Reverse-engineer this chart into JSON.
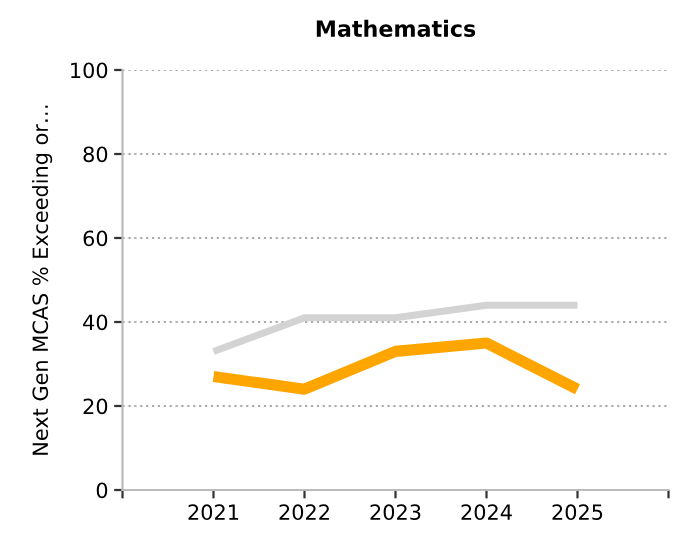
{
  "chart_data": {
    "type": "line",
    "title": "Mathematics",
    "ylabel": "Next Gen MCAS % Exceeding or…",
    "categories": [
      "2021",
      "2022",
      "2023",
      "2024",
      "2025"
    ],
    "series": [
      {
        "color": "#d3d3d3",
        "values": [
          33,
          41,
          41,
          44,
          44
        ]
      },
      {
        "color": "#ffa500",
        "values": [
          27,
          24,
          33,
          35,
          24
        ]
      }
    ],
    "ylim": [
      0,
      100
    ],
    "yticks": [
      0,
      20,
      40,
      60,
      80,
      100
    ],
    "grid": "y",
    "legend": false,
    "marker": "none",
    "line_style": "solid"
  }
}
